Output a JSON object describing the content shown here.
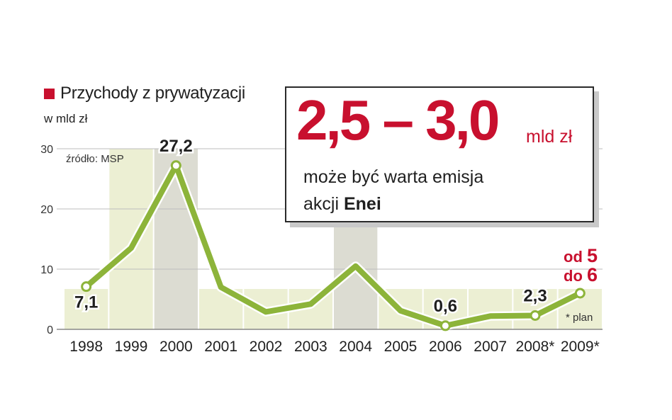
{
  "colors": {
    "accent": "#c8102e",
    "line": "#8db43a",
    "bar_light": "#ecefd3",
    "bar_gray": "#dcdcd2",
    "text": "#1f1f1f"
  },
  "legend": {
    "label": "Przychody z prywatyzacji"
  },
  "unit_label": "w mld zł",
  "source": "źródło: MSP",
  "plan_note": "* plan",
  "callout": {
    "big_value": "2,5 – 3,0",
    "unit": "mld zł",
    "line1": "może być warta emisja",
    "line2_prefix": "akcji ",
    "line2_bold": "Enei"
  },
  "plan_label": {
    "line1_prefix": "od ",
    "line1_value": "5",
    "line2_prefix": "do ",
    "line2_value": "6"
  },
  "chart_data": {
    "type": "line",
    "title": "Przychody z prywatyzacji",
    "ylabel": "w mld zł",
    "categories": [
      "1998",
      "1999",
      "2000",
      "2001",
      "2002",
      "2003",
      "2004",
      "2005",
      "2006",
      "2007",
      "2008*",
      "2009*"
    ],
    "series": [
      {
        "name": "Przychody z prywatyzacji",
        "values": [
          7.1,
          13.5,
          27.2,
          7.0,
          2.9,
          4.2,
          10.5,
          3.1,
          0.6,
          2.2,
          2.3,
          6.0
        ]
      }
    ],
    "value_labels": [
      {
        "index": 0,
        "text": "7,1"
      },
      {
        "index": 2,
        "text": "27,2"
      },
      {
        "index": 8,
        "text": "0,6"
      },
      {
        "index": 10,
        "text": "2,3"
      }
    ],
    "y_ticks": [
      0,
      10,
      20,
      30
    ],
    "ylim": [
      0,
      30
    ],
    "grid": true,
    "background_bands_gray": [
      "2000",
      "2004"
    ]
  }
}
